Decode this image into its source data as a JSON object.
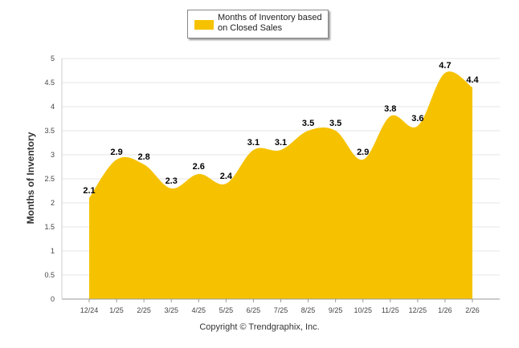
{
  "chart_data": {
    "type": "area",
    "title": "",
    "series": [
      {
        "name": "Months of Inventory based on Closed Sales",
        "color": "#f6c200",
        "values": [
          2.1,
          2.9,
          2.8,
          2.3,
          2.6,
          2.4,
          3.1,
          3.1,
          3.5,
          3.5,
          2.9,
          3.8,
          3.6,
          4.7,
          4.4
        ]
      }
    ],
    "categories": [
      "12/24",
      "1/25",
      "2/25",
      "3/25",
      "4/25",
      "5/25",
      "6/25",
      "7/25",
      "8/25",
      "9/25",
      "10/25",
      "11/25",
      "12/25",
      "1/26",
      "2/26"
    ],
    "data_labels": [
      "2.1",
      "2.9",
      "2.8",
      "2.3",
      "2.6",
      "2.4",
      "3.1",
      "3.1",
      "3.5",
      "3.5",
      "2.9",
      "3.8",
      "3.6",
      "4.7",
      "4.4"
    ],
    "ylabel": "Months of Inventory",
    "xlabel": "",
    "ylim": [
      0,
      5
    ],
    "yticks": [
      "0",
      "0.5",
      "1",
      "1.5",
      "2",
      "2.5",
      "3",
      "3.5",
      "4",
      "4.5",
      "5"
    ],
    "grid": true,
    "legend": "top-center"
  },
  "legend": {
    "label": "Months of Inventory based on Closed Sales"
  },
  "footer": {
    "copyright": "Copyright © Trendgraphix, Inc."
  }
}
